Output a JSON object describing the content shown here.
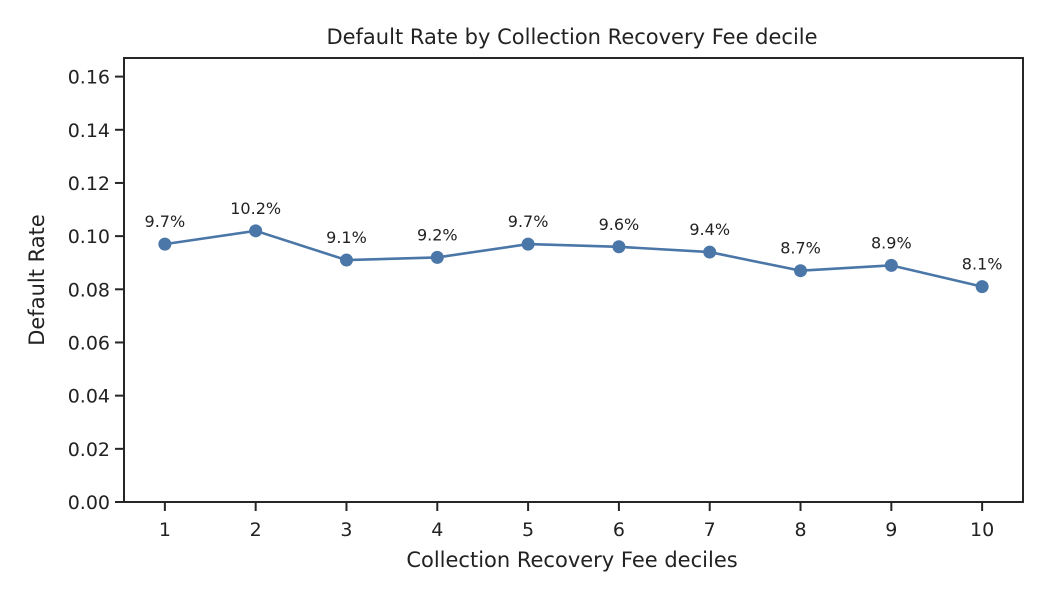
{
  "chart_data": {
    "type": "line",
    "title": "Default Rate by Collection Recovery Fee decile",
    "xlabel": "Collection Recovery Fee deciles",
    "ylabel": "Default Rate",
    "x": [
      1,
      2,
      3,
      4,
      5,
      6,
      7,
      8,
      9,
      10
    ],
    "xticks": [
      "1",
      "2",
      "3",
      "4",
      "5",
      "6",
      "7",
      "8",
      "9",
      "10"
    ],
    "series": [
      {
        "values": [
          0.097,
          0.102,
          0.091,
          0.092,
          0.097,
          0.096,
          0.094,
          0.087,
          0.089,
          0.081
        ],
        "labels": [
          "9.7%",
          "10.2%",
          "9.1%",
          "9.2%",
          "9.7%",
          "9.6%",
          "9.4%",
          "8.7%",
          "8.9%",
          "8.1%"
        ],
        "color": "#4a76a8"
      }
    ],
    "ylim": [
      0,
      0.167
    ],
    "xlim": [
      0.55,
      10.45
    ],
    "yticks": [
      "0.00",
      "0.02",
      "0.04",
      "0.06",
      "0.08",
      "0.10",
      "0.12",
      "0.14",
      "0.16"
    ],
    "ytick_values": [
      0,
      0.02,
      0.04,
      0.06,
      0.08,
      0.1,
      0.12,
      0.14,
      0.16
    ],
    "grid": false,
    "legend": "none"
  }
}
